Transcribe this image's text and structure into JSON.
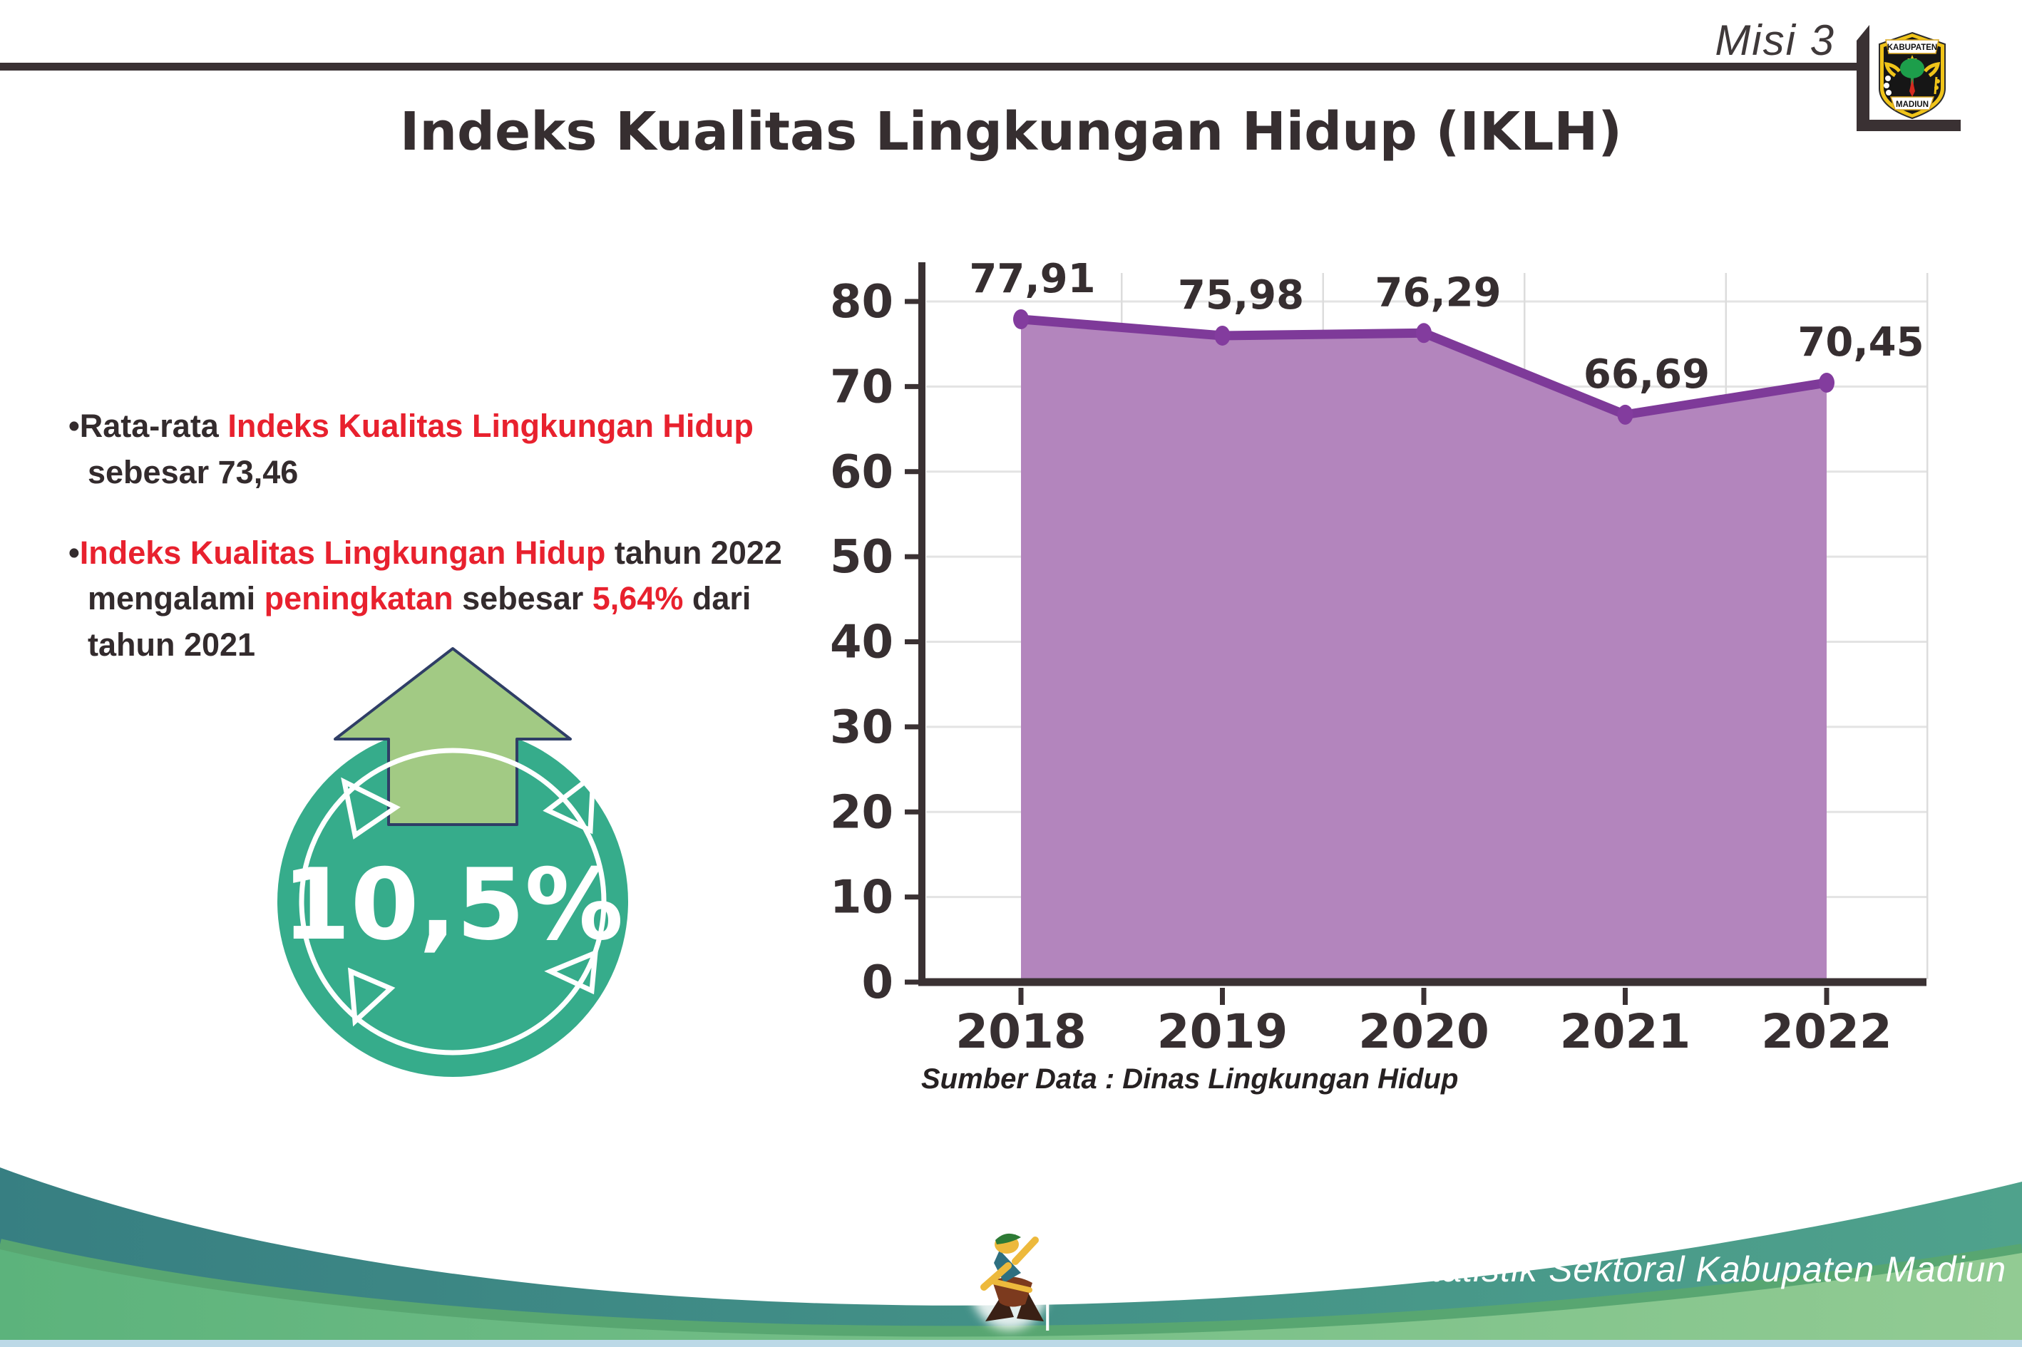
{
  "header": {
    "misi_label": "Misi 3",
    "seal": {
      "icon": "kabupaten-madiun-seal",
      "top_text": "KABUPATEN",
      "bottom_text": "MADIUN"
    }
  },
  "title": "Indeks Kualitas Lingkungan Hidup (IKLH)",
  "bullets": {
    "marker": "•",
    "b1": {
      "s1": "Rata-rata ",
      "s2": "Indeks Kualitas Lingkungan Hidup",
      "s3": " sebesar 73,46"
    },
    "b2": {
      "s1": "Indeks Kualitas Lingkungan Hidup",
      "s2": " tahun 2022 mengalami ",
      "s3": "peningkatan",
      "s4": " sebesar ",
      "s5": "5,64%",
      "s6": " dari tahun 2021"
    }
  },
  "badge": {
    "icon": "increase-arrow",
    "value": "10,5%",
    "circle_color": "#36ac8b",
    "arrow_color": "#a2ca84"
  },
  "chart_data": {
    "type": "area",
    "title": "",
    "xlabel": "",
    "ylabel": "",
    "categories": [
      "2018",
      "2019",
      "2020",
      "2021",
      "2022"
    ],
    "values": [
      77.91,
      75.98,
      76.29,
      66.69,
      70.45
    ],
    "labels": [
      "77,91",
      "75,98",
      "76,29",
      "66,69",
      "70,45"
    ],
    "ylim": [
      0,
      80
    ],
    "y_ticks": [
      0,
      10,
      20,
      30,
      40,
      50,
      60,
      70,
      80
    ],
    "grid": true,
    "legend": "none",
    "line_color": "#7e3a99",
    "fill_color": "#b385bd",
    "marker_color": "#833c9e",
    "axis_color": "#3a3133"
  },
  "source_note": "Sumber Data : Dinas Lingkungan Hidup",
  "footer": {
    "mascot_icon": "dancing-person-mascot",
    "caption": "Media Infografis Data Statistik Sektoral Kabupaten Madiun |",
    "teal_wave_color": "#377f82",
    "green_wave_color": "#6fbc84"
  }
}
